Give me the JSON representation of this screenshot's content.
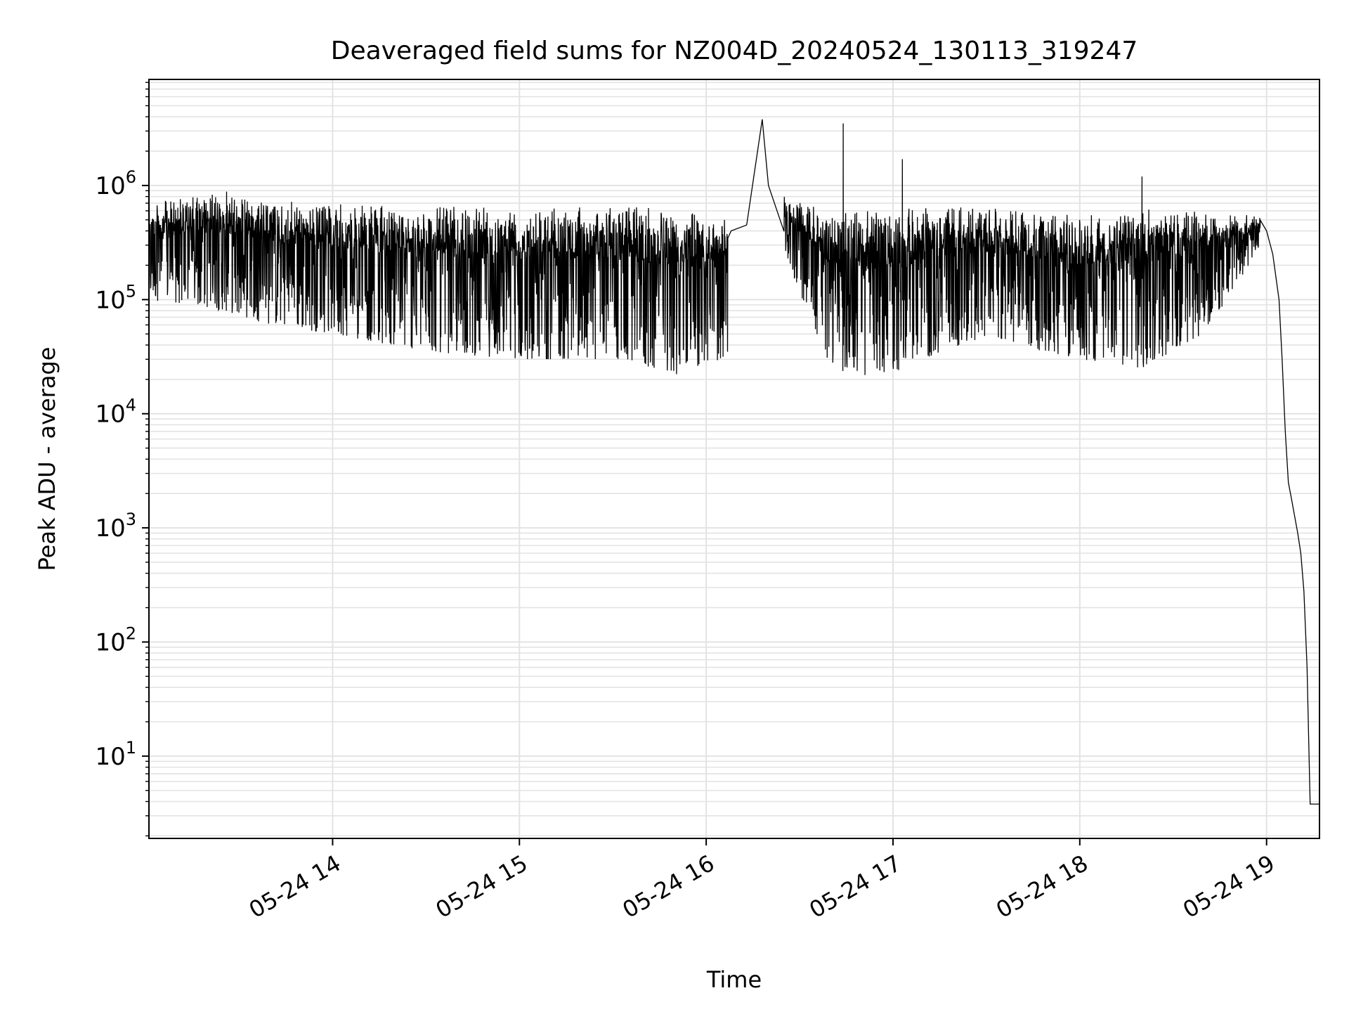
{
  "chart_data": {
    "type": "line",
    "title": "Deaveraged field sums for NZ004D_20240524_130113_319247",
    "xlabel": "Time",
    "ylabel": "Peak ADU - average",
    "xscale": "time",
    "yscale": "log",
    "xlim": [
      "2024-05-24 13:01",
      "2024-05-24 19:17"
    ],
    "ylim": [
      1.9,
      8500000
    ],
    "x_ticks": [
      {
        "value": "2024-05-24 14:00",
        "label": "05-24 14"
      },
      {
        "value": "2024-05-24 15:00",
        "label": "05-24 15"
      },
      {
        "value": "2024-05-24 16:00",
        "label": "05-24 16"
      },
      {
        "value": "2024-05-24 17:00",
        "label": "05-24 17"
      },
      {
        "value": "2024-05-24 18:00",
        "label": "05-24 18"
      },
      {
        "value": "2024-05-24 19:00",
        "label": "05-24 19"
      }
    ],
    "y_ticks": [
      {
        "value": 10,
        "base": "10",
        "exp": "1"
      },
      {
        "value": 100,
        "base": "10",
        "exp": "2"
      },
      {
        "value": 1000,
        "base": "10",
        "exp": "3"
      },
      {
        "value": 10000,
        "base": "10",
        "exp": "4"
      },
      {
        "value": 100000,
        "base": "10",
        "exp": "5"
      },
      {
        "value": 1000000,
        "base": "10",
        "exp": "6"
      }
    ],
    "grid": true,
    "line_color": "#000000",
    "grid_color": "#e3e3e3",
    "series": [
      {
        "band_profile": {
          "time": [
            "2024-05-24 13:01",
            "2024-05-24 13:25",
            "2024-05-24 13:40",
            "2024-05-24 14:00",
            "2024-05-24 14:30",
            "2024-05-24 15:00",
            "2024-05-24 15:30",
            "2024-05-24 15:50",
            "2024-05-24 16:05"
          ],
          "upper": [
            700000,
            900000,
            750000,
            700000,
            650000,
            650000,
            650000,
            650000,
            500000
          ],
          "lower": [
            100000,
            80000,
            60000,
            50000,
            35000,
            30000,
            30000,
            22000,
            30000
          ]
        },
        "points": [
          [
            "2024-05-24 16:08",
            400000
          ],
          [
            "2024-05-24 16:13",
            450000
          ],
          [
            "2024-05-24 16:18",
            3800000
          ],
          [
            "2024-05-24 16:20",
            1000000
          ],
          [
            "2024-05-24 16:25",
            800000
          ],
          [
            "2024-05-24 16:30",
            500000
          ],
          [
            "2024-05-24 16:35",
            300000
          ],
          [
            "2024-05-24 16:40",
            60000
          ],
          [
            "2024-05-24 16:44",
            3500000
          ],
          [
            "2024-05-24 16:47",
            30000
          ],
          [
            "2024-05-24 16:55",
            200000
          ],
          [
            "2024-05-24 17:00",
            400000
          ],
          [
            "2024-05-24 17:03",
            1700000
          ],
          [
            "2024-05-24 17:06",
            50000
          ],
          [
            "2024-05-24 17:15",
            40000
          ],
          [
            "2024-05-24 17:20",
            500000
          ],
          [
            "2024-05-24 17:40",
            400000
          ],
          [
            "2024-05-24 18:00",
            200000
          ],
          [
            "2024-05-24 18:20",
            1200000
          ],
          [
            "2024-05-24 18:30",
            150000
          ],
          [
            "2024-05-24 18:45",
            500000
          ],
          [
            "2024-05-24 18:55",
            550000
          ],
          [
            "2024-05-24 19:00",
            400000
          ],
          [
            "2024-05-24 19:02",
            250000
          ],
          [
            "2024-05-24 19:04",
            100000
          ],
          [
            "2024-05-24 19:05",
            30000
          ],
          [
            "2024-05-24 19:06",
            7000
          ],
          [
            "2024-05-24 19:07",
            2500
          ],
          [
            "2024-05-24 19:08",
            1800
          ],
          [
            "2024-05-24 19:10",
            900
          ],
          [
            "2024-05-24 19:11",
            600
          ],
          [
            "2024-05-24 19:12",
            280
          ],
          [
            "2024-05-24 19:13",
            60
          ],
          [
            "2024-05-24 19:14",
            3.8
          ],
          [
            "2024-05-24 19:17",
            3.8
          ]
        ],
        "band_profile_2": {
          "time": [
            "2024-05-24 16:25",
            "2024-05-24 16:40",
            "2024-05-24 16:55",
            "2024-05-24 17:10",
            "2024-05-24 17:30",
            "2024-05-24 18:00",
            "2024-05-24 18:20",
            "2024-05-24 18:40",
            "2024-05-24 18:58"
          ],
          "upper": [
            800000,
            600000,
            600000,
            650000,
            650000,
            550000,
            650000,
            600000,
            550000
          ],
          "lower": [
            250000,
            25000,
            20000,
            30000,
            45000,
            30000,
            25000,
            50000,
            280000
          ]
        }
      }
    ]
  }
}
